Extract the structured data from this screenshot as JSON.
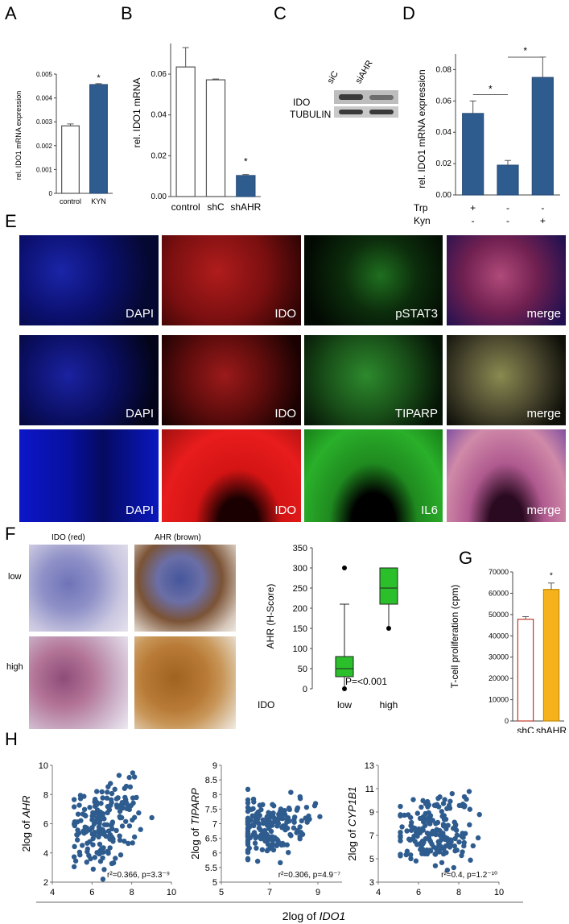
{
  "labels": {
    "A": "A",
    "B": "B",
    "C": "C",
    "D": "D",
    "E": "E",
    "F": "F",
    "G": "G",
    "H": "H"
  },
  "panelA": {
    "type": "bar",
    "ylabel": "rel. IDO1 mRNA expression",
    "categories": [
      "control",
      "KYN"
    ],
    "values": [
      0.00283,
      0.00456
    ],
    "errors": [
      8e-05,
      4e-05
    ],
    "yticks": [
      "0",
      "0.001",
      "0.002",
      "0.003",
      "0.004",
      "0.005"
    ],
    "ylim": [
      0,
      0.005
    ],
    "star": "*",
    "colors": [
      "#ffffff",
      "#2f5c8f"
    ]
  },
  "panelB": {
    "type": "bar",
    "ylabel": "rel. IDO1 mRNA",
    "categories": [
      "control",
      "shC",
      "shAHR"
    ],
    "values": [
      0.0635,
      0.0572,
      0.0103
    ],
    "errors": [
      0.0095,
      0.0004,
      0.0005
    ],
    "yticks": [
      "0.00",
      "0.02",
      "0.04",
      "0.06"
    ],
    "ylim": [
      0,
      0.075
    ],
    "star": "*",
    "colors": [
      "#ffffff",
      "#ffffff",
      "#2f5c8f"
    ]
  },
  "panelC": {
    "lanes": [
      "siC",
      "siAHR"
    ],
    "rows": [
      "IDO",
      "TUBULIN"
    ]
  },
  "panelD": {
    "type": "bar",
    "ylabel": "rel. IDO1 mRNA expression",
    "values": [
      0.052,
      0.019,
      0.075
    ],
    "errors": [
      0.008,
      0.003,
      0.013
    ],
    "yticks": [
      "0.00",
      "0.02",
      "0.04",
      "0.06",
      "0.08"
    ],
    "ylim": [
      0,
      0.09
    ],
    "rowlabels": [
      "Trp",
      "Kyn"
    ],
    "trp": [
      "+",
      "-",
      "-"
    ],
    "kyn": [
      "-",
      "-",
      "+"
    ],
    "star": "*",
    "color": "#2f5c8f"
  },
  "panelE": {
    "row1": [
      "DAPI",
      "IDO",
      "pSTAT3",
      "merge"
    ],
    "row2": [
      "DAPI",
      "IDO",
      "TIPARP",
      "merge"
    ],
    "row3": [
      "DAPI",
      "IDO",
      "IL6",
      "merge"
    ]
  },
  "panelF": {
    "col_titles": [
      "IDO (red)",
      "AHR (brown)"
    ],
    "row_labels": [
      "low",
      "high"
    ],
    "box": {
      "type": "box",
      "ylabel": "AHR (H-Score)",
      "xgroup_label": "IDO",
      "categories": [
        "low",
        "high"
      ],
      "yticks": [
        "0",
        "50",
        "100",
        "150",
        "200",
        "250",
        "300",
        "350"
      ],
      "ylim": [
        0,
        350
      ],
      "low": {
        "min": 0,
        "q1": 30,
        "median": 50,
        "q3": 80,
        "whisker_hi": 210,
        "outliers": [
          0,
          300
        ]
      },
      "high": {
        "min": 150,
        "q1": 210,
        "median": 250,
        "q3": 300,
        "whisker_hi": 300,
        "outliers": [
          150
        ]
      },
      "pvalue": "P=<0.001",
      "color": "#2bc02b"
    }
  },
  "panelG": {
    "type": "bar",
    "ylabel": "T-cell proliferation (cpm)",
    "categories": [
      "shC",
      "shAHR"
    ],
    "values": [
      47800,
      61800
    ],
    "errors": [
      1200,
      3000
    ],
    "yticks": [
      "0",
      "10000",
      "20000",
      "30000",
      "40000",
      "50000",
      "60000",
      "70000"
    ],
    "ylim": [
      0,
      70000
    ],
    "star": "*",
    "colors": [
      "#ffffff",
      "#f5b21a"
    ],
    "edge": [
      "#c0392b",
      "#c48a0a"
    ]
  },
  "panelH": {
    "xlabel_prefix": "2log of ",
    "xlabel_gene": "IDO1",
    "plots": [
      {
        "ylabel_prefix": "2log of ",
        "gene": "AHR",
        "xticks": [
          "4",
          "6",
          "8",
          "10"
        ],
        "xlim": [
          4,
          10
        ],
        "yticks": [
          "2",
          "4",
          "6",
          "8",
          "10"
        ],
        "ylim": [
          2,
          10
        ],
        "stat": "r²=0.366, p=3.3⁻⁹"
      },
      {
        "ylabel_prefix": "2log of ",
        "gene": "TIPARP",
        "xticks": [
          "5",
          "7",
          "9"
        ],
        "xlim": [
          5,
          10
        ],
        "yticks": [
          "5",
          "5.5",
          "6",
          "6.5",
          "7",
          "7.5",
          "8",
          "8.5",
          "9"
        ],
        "ylim": [
          5,
          9
        ],
        "stat": "r²=0.306, p=4.9⁻⁷"
      },
      {
        "ylabel_prefix": "2log of ",
        "gene": "CYP1B1",
        "xticks": [
          "4",
          "6",
          "8",
          "10"
        ],
        "xlim": [
          4,
          10
        ],
        "yticks": [
          "3",
          "5",
          "7",
          "9",
          "11",
          "13"
        ],
        "ylim": [
          3,
          13
        ],
        "stat": "r²=0.4, p=1.2⁻¹⁰"
      }
    ]
  }
}
